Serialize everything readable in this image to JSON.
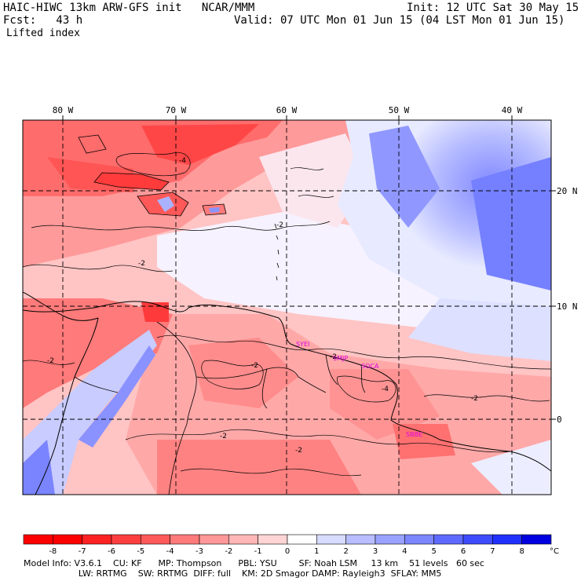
{
  "header": {
    "model_line": "HAIC-HIWC 13km ARW-GFS init   NCAR/MMM",
    "fcst_line": "Fcst:   43 h",
    "init_line": "Init: 12 UTC Sat 30 May 15",
    "valid_line": "Valid: 07 UTC Mon 01 Jun 15 (04 LST Mon 01 Jun 15)",
    "field_name": "Lifted index"
  },
  "map": {
    "lon_labels": [
      "80 W",
      "70 W",
      "60 W",
      "50 W",
      "40 W"
    ],
    "lat_labels": [
      "20 N",
      "10 N",
      "0"
    ],
    "stations": [
      "SYEI",
      "SMJP",
      "SOCA",
      "SBBE"
    ],
    "contour_labels": [
      "-2",
      "-2",
      "-2",
      "-2",
      "-2",
      "-2",
      "-4",
      "-4",
      "-2",
      "-2"
    ]
  },
  "colorbar": {
    "ticks": [
      "-8",
      "-7",
      "-6",
      "-5",
      "-4",
      "-3",
      "-2",
      "-1",
      "0",
      "1",
      "2",
      "3",
      "4",
      "5",
      "6",
      "7",
      "8"
    ],
    "unit": "°C",
    "colors": [
      "#ff0000",
      "#ff2222",
      "#ff3f3f",
      "#ff5a5a",
      "#ff7a7a",
      "#ff9898",
      "#ffb6b6",
      "#ffd4d4",
      "#ffffff",
      "#d8dcff",
      "#b8beff",
      "#9aa2ff",
      "#7c86ff",
      "#5e6aff",
      "#3e4cff",
      "#2030ff",
      "#0012e8"
    ]
  },
  "footer": {
    "line1": "Model Info: V3.6.1    CU: KF      MP: Thompson      PBL: YSU        SF: Noah LSM     13 km    51 levels   60 sec",
    "line2": "                    LW: RRTMG    SW: RRTMG  DIFF: full    KM: 2D Smagor DAMP: Rayleigh3  SFLAY: MM5"
  }
}
